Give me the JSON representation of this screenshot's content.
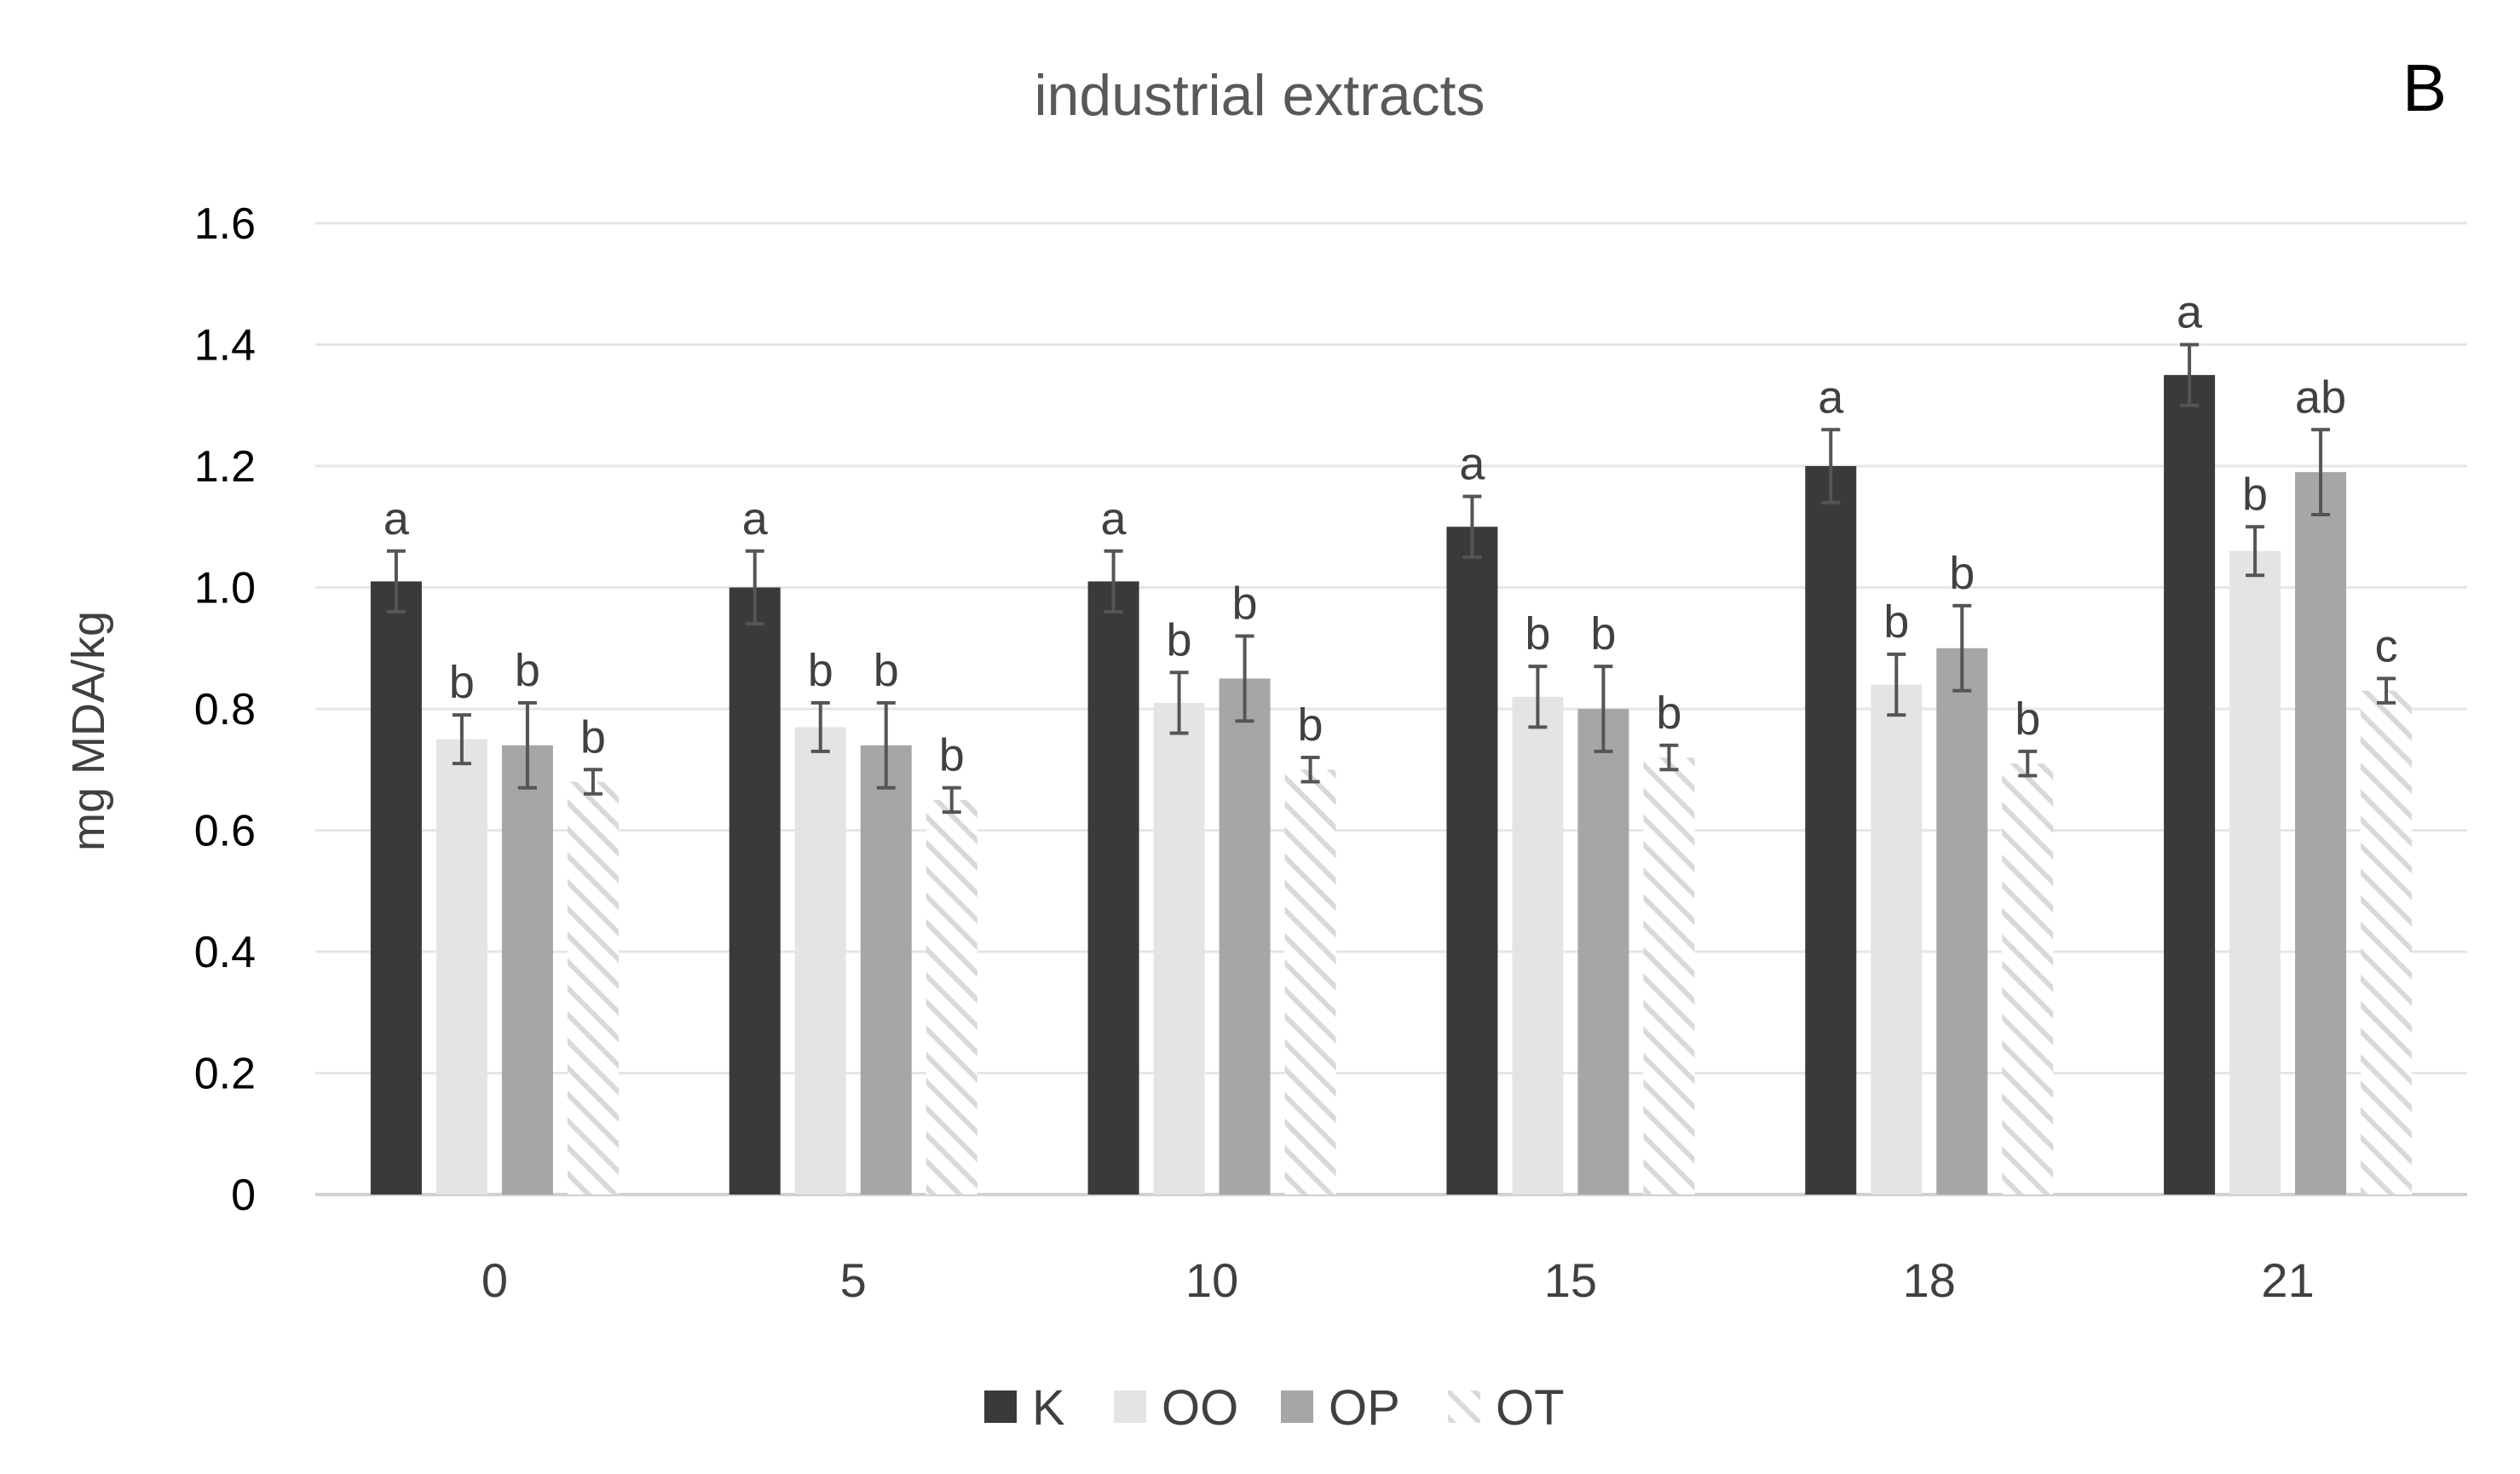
{
  "chart_data": {
    "type": "bar",
    "title": "industrial extracts",
    "panel_label": "B",
    "xlabel": "",
    "ylabel": "mg MDA/kg",
    "ylim": [
      0,
      1.6
    ],
    "yticks": [
      "0",
      "0.2",
      "0.4",
      "0.6",
      "0.8",
      "1.0",
      "1.2",
      "1.4",
      "1.6"
    ],
    "grid": true,
    "legend_position": "bottom",
    "categories": [
      "0",
      "5",
      "10",
      "15",
      "18",
      "21"
    ],
    "series": [
      {
        "name": "K",
        "color": "#3a3a3a",
        "pattern": "solid",
        "values": [
          1.01,
          1.0,
          1.01,
          1.1,
          1.2,
          1.35
        ],
        "errors": [
          0.05,
          0.06,
          0.05,
          0.05,
          0.06,
          0.05
        ],
        "labels": [
          "a",
          "a",
          "a",
          "a",
          "a",
          "a"
        ]
      },
      {
        "name": "OO",
        "color": "#e4e4e4",
        "pattern": "solid",
        "values": [
          0.75,
          0.77,
          0.81,
          0.82,
          0.84,
          1.06
        ],
        "errors": [
          0.04,
          0.04,
          0.05,
          0.05,
          0.05,
          0.04
        ],
        "labels": [
          "b",
          "b",
          "b",
          "b",
          "b",
          "b"
        ]
      },
      {
        "name": "OP",
        "color": "#a6a6a6",
        "pattern": "solid",
        "values": [
          0.74,
          0.74,
          0.85,
          0.8,
          0.9,
          1.19
        ],
        "errors": [
          0.07,
          0.07,
          0.07,
          0.07,
          0.07,
          0.07
        ],
        "labels": [
          "b",
          "b",
          "b",
          "b",
          "b",
          "ab"
        ]
      },
      {
        "name": "OT",
        "color": "#d9d9d9",
        "pattern": "hatch",
        "values": [
          0.68,
          0.65,
          0.7,
          0.72,
          0.71,
          0.83
        ],
        "errors": [
          0.02,
          0.02,
          0.02,
          0.02,
          0.02,
          0.02
        ],
        "labels": [
          "b",
          "b",
          "b",
          "b",
          "b",
          "c"
        ]
      }
    ]
  }
}
